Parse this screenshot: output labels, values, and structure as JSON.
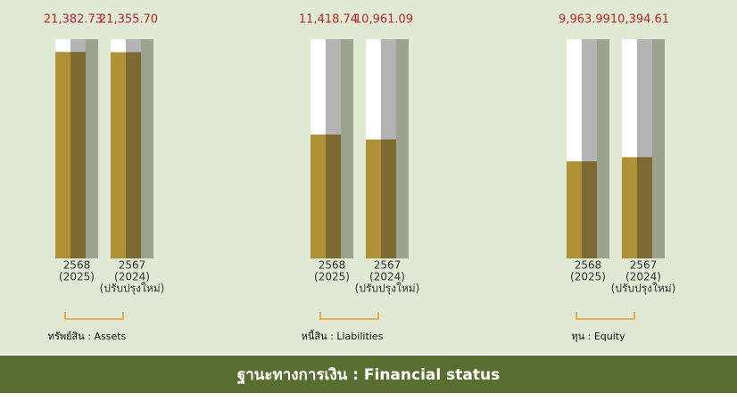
{
  "chart_data": [
    {
      "type": "bar",
      "label": "ทรัพย์สิน : Assets",
      "categories": [
        [
          "2568",
          "(2025)"
        ],
        [
          "2567",
          "(2024)",
          "(ปรับปรุงใหม่)"
        ]
      ],
      "values": [
        21382.73,
        21355.7
      ],
      "value_labels": [
        "21,382.73",
        "21,355.70"
      ],
      "ylim": [
        0,
        22700
      ],
      "color": "#b09138"
    },
    {
      "type": "bar",
      "label": "หนี้สิน : Liabilities",
      "categories": [
        [
          "2568",
          "(2025)"
        ],
        [
          "2567",
          "(2024)",
          "(ปรับปรุงใหม่)"
        ]
      ],
      "values": [
        11418.74,
        10961.09
      ],
      "value_labels": [
        "11,418.74",
        "10,961.09"
      ],
      "ylim": [
        0,
        20200
      ],
      "color": "#b09138"
    },
    {
      "type": "bar",
      "label": "ทุน : Equity",
      "categories": [
        [
          "2568",
          "(2025)"
        ],
        [
          "2567",
          "(2024)",
          "(ปรับปรุงใหม่)"
        ]
      ],
      "values": [
        9963.99,
        10394.61
      ],
      "value_labels": [
        "9,963.99",
        "10,394.61"
      ],
      "ylim": [
        0,
        22500
      ],
      "color": "#b09138"
    }
  ],
  "footer": "ฐานะทางการเงิน : Financial status"
}
